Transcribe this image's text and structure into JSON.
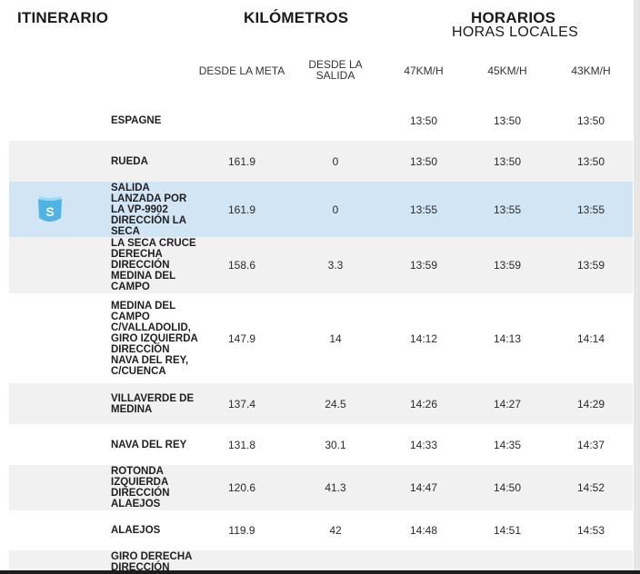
{
  "header": {
    "itinerario": "ITINERARIO",
    "kilometros": "KILÓMETROS",
    "horarios": "HORARIOS",
    "horas_locales": "HORAS LOCALES"
  },
  "columns": {
    "desde_meta": "DESDE LA META",
    "desde_salida": "DESDE LA SALIDA",
    "speed1": "47KM/H",
    "speed2": "45KM/H",
    "speed3": "43KM/H"
  },
  "colors": {
    "highlight": "#d2e5f5",
    "badge": "#4fb3e6",
    "stripe": "#f1f1f1"
  },
  "rows": [
    {
      "place": "ESPAGNE",
      "meta": "",
      "salida": "",
      "t1": "13:50",
      "t2": "13:50",
      "t3": "13:50"
    },
    {
      "place": "RUEDA",
      "meta": "161.9",
      "salida": "0",
      "t1": "13:50",
      "t2": "13:50",
      "t3": "13:50"
    },
    {
      "place": "SALIDA LANZADA POR LA VP-9902 DIRECCIÓN LA SECA",
      "meta": "161.9",
      "salida": "0",
      "t1": "13:55",
      "t2": "13:55",
      "t3": "13:55",
      "badge": "S",
      "badge_icon": "start-flag-icon"
    },
    {
      "place": "LA SECA CRUCE DERECHA DIRECCIÓN MEDINA DEL CAMPO",
      "meta": "158.6",
      "salida": "3.3",
      "t1": "13:59",
      "t2": "13:59",
      "t3": "13:59"
    },
    {
      "place": "MEDINA DEL CAMPO C/VALLADOLID, GIRO IZQUIERDA DIRECCIÓN NAVA DEL REY, C/CUENCA",
      "meta": "147.9",
      "salida": "14",
      "t1": "14:12",
      "t2": "14:13",
      "t3": "14:14"
    },
    {
      "place": "VILLAVERDE DE MEDINA",
      "meta": "137.4",
      "salida": "24.5",
      "t1": "14:26",
      "t2": "14:27",
      "t3": "14:29"
    },
    {
      "place": "NAVA DEL REY",
      "meta": "131.8",
      "salida": "30.1",
      "t1": "14:33",
      "t2": "14:35",
      "t3": "14:37"
    },
    {
      "place": "ROTONDA IZQUIERDA DIRECCIÓN ALAEJOS",
      "meta": "120.6",
      "salida": "41.3",
      "t1": "14:47",
      "t2": "14:50",
      "t3": "14:52"
    },
    {
      "place": "ALAEJOS",
      "meta": "119.9",
      "salida": "42",
      "t1": "14:48",
      "t2": "14:51",
      "t3": "14:53"
    },
    {
      "place": "GIRO DERECHA DIRECCIÓN",
      "meta": "",
      "salida": "",
      "t1": "",
      "t2": "",
      "t3": ""
    }
  ]
}
